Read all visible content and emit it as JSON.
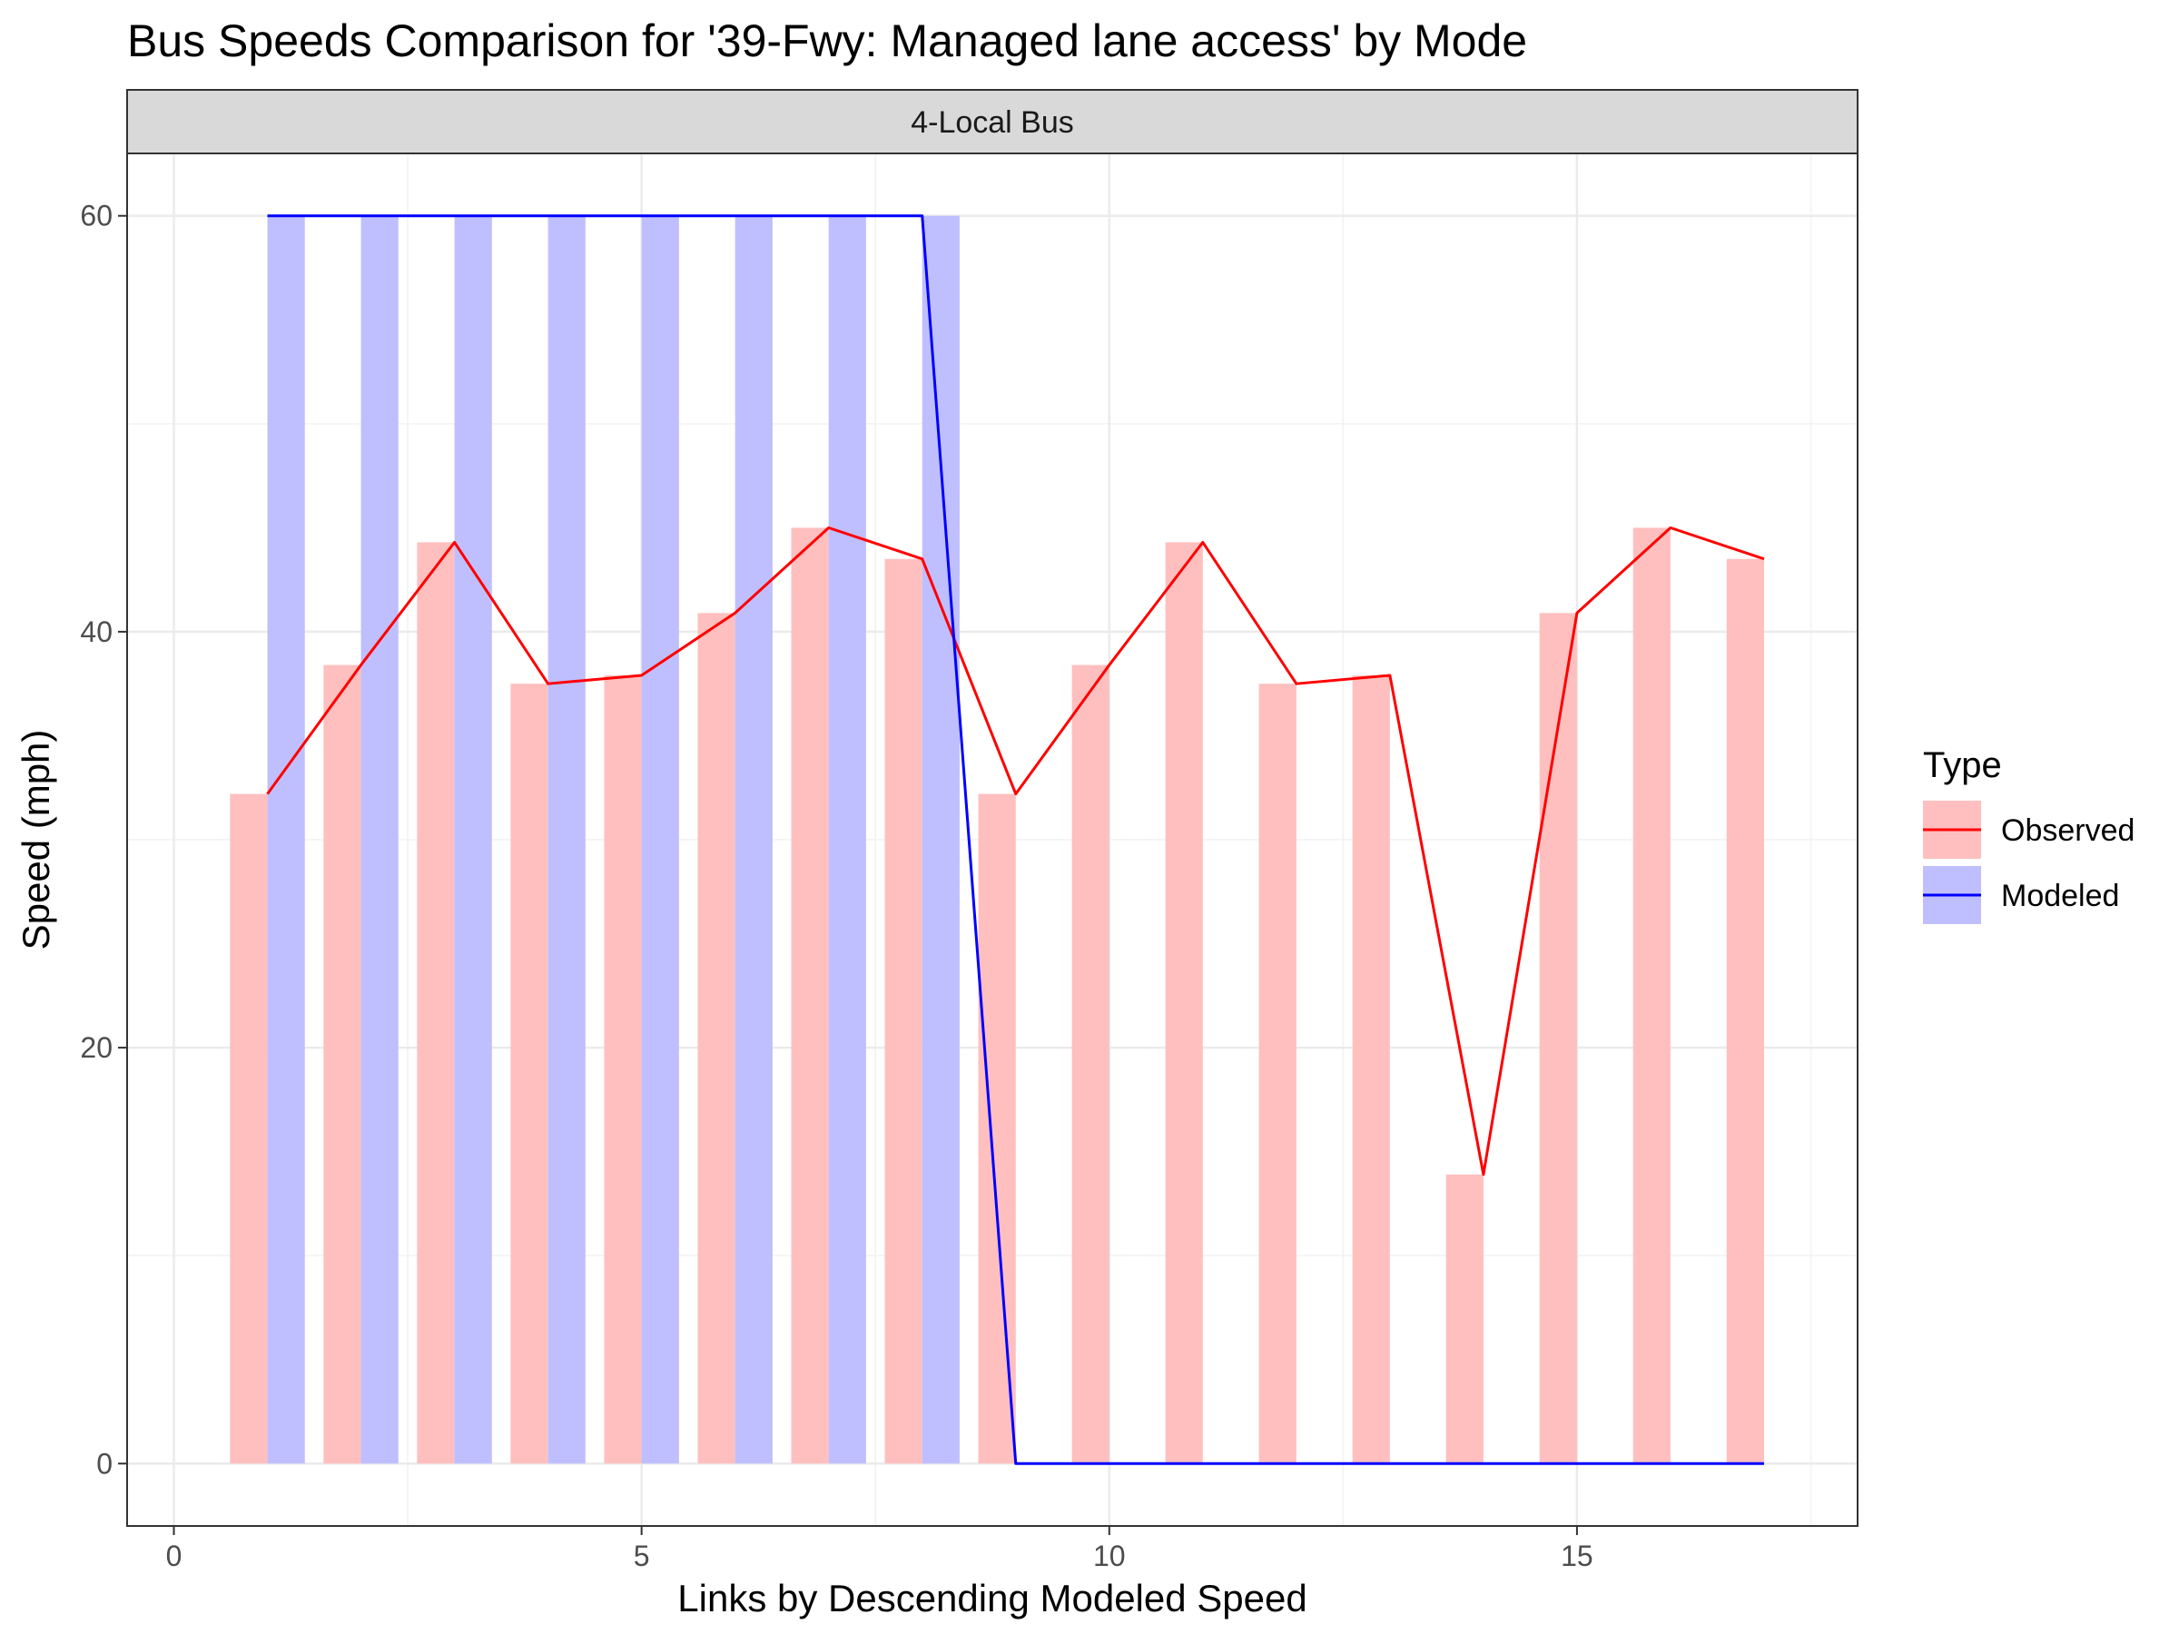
{
  "chart_data": {
    "type": "bar",
    "title": "Bus Speeds Comparison for '39-Fwy: Managed lane access' by Mode",
    "facet": "4-Local Bus",
    "xlabel": "Links by Descending Modeled Speed",
    "ylabel": "Speed (mph)",
    "xlim": [
      -0.5,
      18
    ],
    "ylim": [
      -3,
      63
    ],
    "x_ticks": [
      0,
      5,
      10,
      15
    ],
    "y_ticks": [
      0,
      20,
      40,
      60
    ],
    "grid": true,
    "legend": {
      "title": "Type",
      "position": "right",
      "entries": [
        "Observed",
        "Modeled"
      ]
    },
    "x": [
      1,
      2,
      3,
      4,
      5,
      6,
      7,
      8,
      9,
      10,
      11,
      12,
      13,
      14,
      15,
      16,
      17
    ],
    "series": [
      {
        "name": "Observed",
        "bar_color": "#ffbfbf",
        "line_color": "#ff0000",
        "values": [
          32.2,
          38.4,
          44.3,
          37.5,
          37.9,
          40.9,
          45.0,
          43.5,
          32.2,
          38.4,
          44.3,
          37.5,
          37.9,
          13.9,
          40.9,
          45.0,
          43.5
        ]
      },
      {
        "name": "Modeled",
        "bar_color": "#bfbfff",
        "line_color": "#0000ff",
        "values": [
          60,
          60,
          60,
          60,
          60,
          60,
          60,
          60,
          0,
          0,
          0,
          0,
          0,
          0,
          0,
          0,
          0
        ]
      }
    ]
  }
}
